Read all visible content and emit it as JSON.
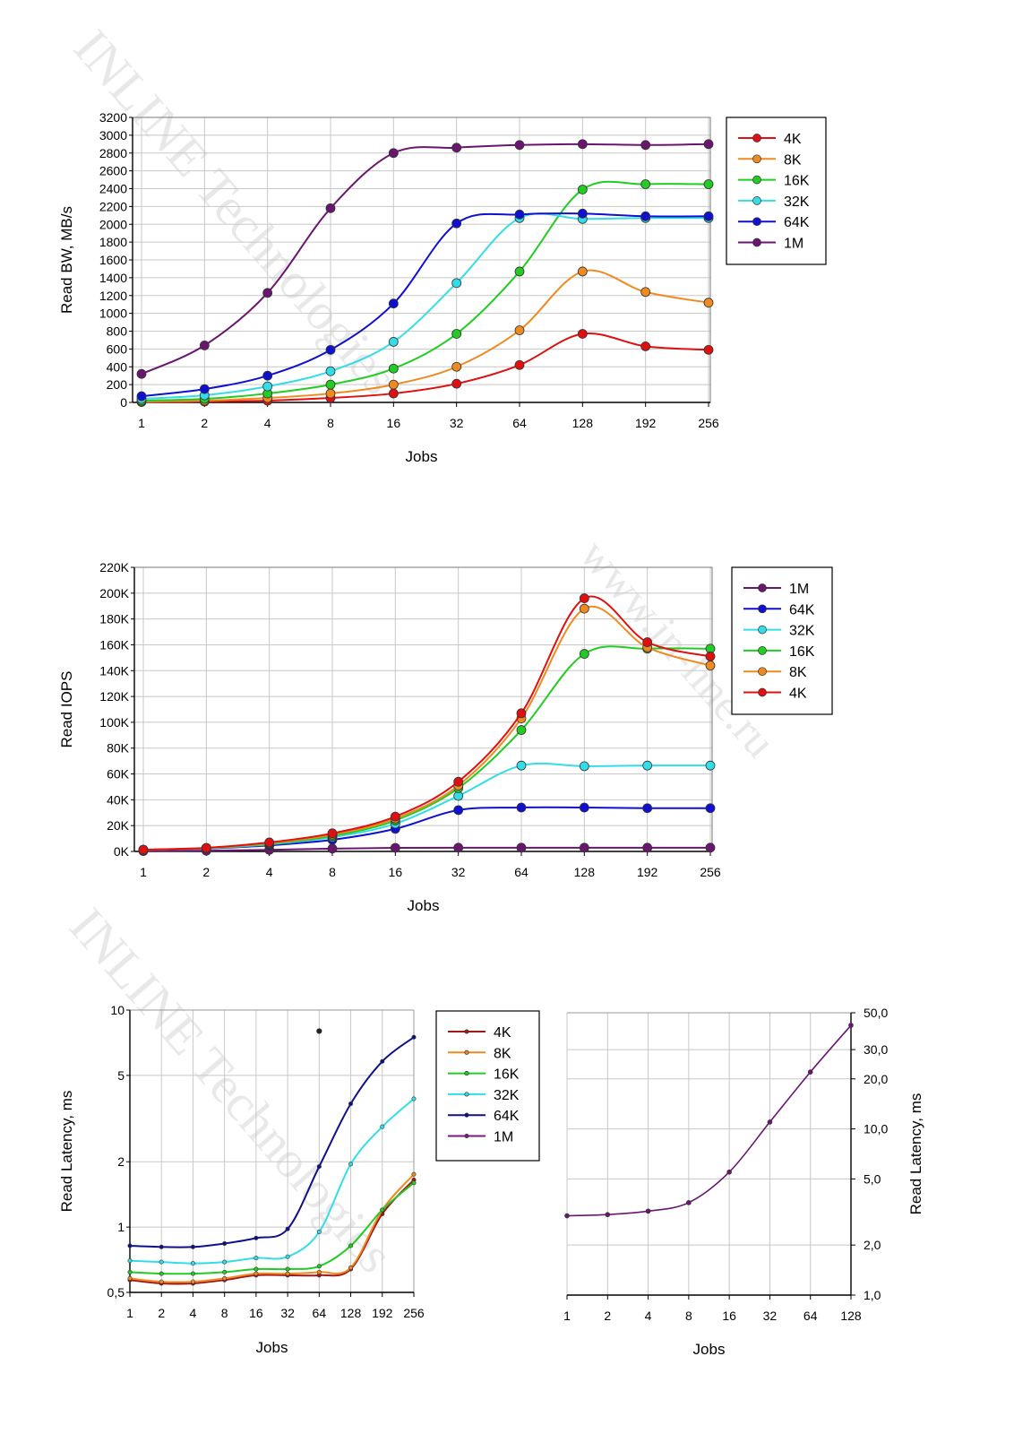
{
  "watermarks": [
    "INLINE Technologies",
    "www.in-line.ru",
    "INLINE Technologies"
  ],
  "chart_data": [
    {
      "type": "line",
      "title": "",
      "xlabel": "Jobs",
      "ylabel": "Read BW, MB/s",
      "categories": [
        "1",
        "2",
        "4",
        "8",
        "16",
        "32",
        "64",
        "128",
        "192",
        "256"
      ],
      "yscale": "linear",
      "ylim": [
        0,
        3200
      ],
      "yticks": [
        0,
        200,
        400,
        600,
        800,
        1000,
        1200,
        1400,
        1600,
        1800,
        2000,
        2200,
        2400,
        2600,
        2800,
        3000,
        3200
      ],
      "ytick_labels": [
        "0",
        "200",
        "400",
        "600",
        "800",
        "1000",
        "1200",
        "1400",
        "1600",
        "1800",
        "2000",
        "2200",
        "2400",
        "2600",
        "2800",
        "3000",
        "3200"
      ],
      "grid": true,
      "legend_position": "right",
      "series": [
        {
          "name": "4K",
          "color": "#e01010",
          "values": [
            5,
            10,
            20,
            50,
            100,
            210,
            420,
            770,
            630,
            590
          ]
        },
        {
          "name": "8K",
          "color": "#f08a20",
          "values": [
            10,
            20,
            50,
            100,
            200,
            400,
            810,
            1470,
            1240,
            1120
          ]
        },
        {
          "name": "16K",
          "color": "#22cc22",
          "values": [
            20,
            40,
            100,
            200,
            380,
            770,
            1470,
            2390,
            2450,
            2450
          ]
        },
        {
          "name": "32K",
          "color": "#33dde8",
          "values": [
            40,
            80,
            180,
            350,
            680,
            1340,
            2070,
            2060,
            2070,
            2070
          ]
        },
        {
          "name": "64K",
          "color": "#1010d0",
          "values": [
            70,
            150,
            300,
            590,
            1110,
            2010,
            2110,
            2120,
            2090,
            2090
          ]
        },
        {
          "name": "1M",
          "color": "#6a1670",
          "values": [
            320,
            640,
            1230,
            2180,
            2800,
            2860,
            2890,
            2900,
            2890,
            2900
          ]
        }
      ]
    },
    {
      "type": "line",
      "title": "",
      "xlabel": "Jobs",
      "ylabel": "Read IOPS",
      "categories": [
        "1",
        "2",
        "4",
        "8",
        "16",
        "32",
        "64",
        "128",
        "192",
        "256"
      ],
      "yscale": "linear",
      "ylim": [
        0,
        220000
      ],
      "yticks": [
        0,
        20000,
        40000,
        60000,
        80000,
        100000,
        120000,
        140000,
        160000,
        180000,
        200000,
        220000
      ],
      "ytick_labels": [
        "0K",
        "20K",
        "40K",
        "60K",
        "80K",
        "100K",
        "120K",
        "140K",
        "160K",
        "180K",
        "200K",
        "220K"
      ],
      "grid": true,
      "legend_position": "right",
      "series": [
        {
          "name": "1M",
          "color": "#6a1670",
          "values": [
            300,
            600,
            1200,
            2200,
            2800,
            2900,
            2900,
            2900,
            2900,
            2900
          ]
        },
        {
          "name": "64K",
          "color": "#1010d0",
          "values": [
            1100,
            2300,
            4700,
            9000,
            17500,
            32000,
            34000,
            34000,
            33500,
            33500
          ]
        },
        {
          "name": "32K",
          "color": "#33dde8",
          "values": [
            1200,
            2500,
            5500,
            11000,
            21500,
            43000,
            66500,
            66000,
            66500,
            66500
          ]
        },
        {
          "name": "16K",
          "color": "#22cc22",
          "values": [
            1200,
            2600,
            6000,
            12000,
            24000,
            49000,
            94000,
            153000,
            157000,
            157000
          ]
        },
        {
          "name": "8K",
          "color": "#f08a20",
          "values": [
            1300,
            2700,
            6500,
            13000,
            25500,
            51000,
            103000,
            188000,
            158000,
            144000
          ]
        },
        {
          "name": "4K",
          "color": "#e01010",
          "values": [
            1400,
            2800,
            7000,
            14000,
            27000,
            54000,
            107000,
            196000,
            162000,
            151000
          ]
        }
      ]
    },
    {
      "type": "line",
      "title": "",
      "xlabel": "Jobs",
      "ylabel": "Read Latency, ms",
      "categories": [
        "1",
        "2",
        "4",
        "8",
        "16",
        "32",
        "64",
        "128",
        "192",
        "256"
      ],
      "yscale": "log",
      "ylim": [
        0.5,
        10
      ],
      "yticks": [
        0.5,
        1,
        2,
        5,
        10
      ],
      "ytick_labels": [
        "0,5",
        "1",
        "2",
        "5",
        "10"
      ],
      "grid": true,
      "legend_position": "right",
      "series": [
        {
          "name": "4K",
          "color": "#a01818",
          "values": [
            0.57,
            0.55,
            0.55,
            0.57,
            0.6,
            0.6,
            0.6,
            0.64,
            1.15,
            1.65
          ]
        },
        {
          "name": "8K",
          "color": "#f08a20",
          "values": [
            0.58,
            0.56,
            0.56,
            0.58,
            0.61,
            0.61,
            0.62,
            0.65,
            1.2,
            1.75
          ]
        },
        {
          "name": "16K",
          "color": "#22cc22",
          "values": [
            0.62,
            0.61,
            0.61,
            0.62,
            0.64,
            0.64,
            0.66,
            0.82,
            1.2,
            1.6
          ]
        },
        {
          "name": "32K",
          "color": "#33dde8",
          "values": [
            0.7,
            0.69,
            0.68,
            0.69,
            0.72,
            0.73,
            0.95,
            1.95,
            2.9,
            3.9
          ]
        },
        {
          "name": "64K",
          "color": "#10108a",
          "values": [
            0.82,
            0.81,
            0.81,
            0.84,
            0.89,
            0.98,
            1.9,
            3.7,
            5.8,
            7.5
          ]
        },
        {
          "name": "1M",
          "color": "#7a1a80",
          "values": [
            null,
            null,
            null,
            null,
            null,
            null,
            8.0,
            null,
            null,
            null
          ]
        }
      ]
    },
    {
      "type": "line",
      "title": "",
      "xlabel": "Jobs",
      "ylabel": "Read Latency, ms",
      "categories": [
        "1",
        "2",
        "4",
        "8",
        "16",
        "32",
        "64",
        "128"
      ],
      "yscale": "log",
      "ylim": [
        1,
        50
      ],
      "yticks": [
        1,
        2,
        5,
        10,
        20,
        30,
        50
      ],
      "ytick_labels": [
        "1,0",
        "2,0",
        "5,0",
        "10,0",
        "20,0",
        "30,0",
        "50,0"
      ],
      "grid": true,
      "legend_position": "none",
      "series": [
        {
          "name": "1M",
          "color": "#6a1670",
          "values": [
            3.0,
            3.05,
            3.2,
            3.6,
            5.5,
            11,
            22,
            42
          ]
        }
      ]
    }
  ]
}
